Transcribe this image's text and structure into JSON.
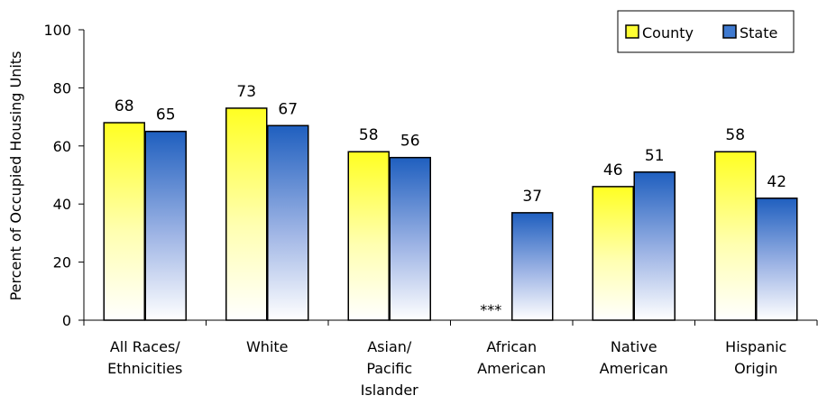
{
  "chart_data": {
    "type": "bar",
    "title": "",
    "xlabel": "",
    "ylabel": "Percent of Occupied Housing Units",
    "ylim": [
      0,
      100
    ],
    "yticks": [
      0,
      20,
      40,
      60,
      80,
      100
    ],
    "grid": false,
    "legend_position": "top-right",
    "categories": [
      [
        "All Races/",
        "Ethnicities"
      ],
      [
        "White"
      ],
      [
        "Asian/",
        "Pacific",
        "Islander"
      ],
      [
        "African",
        "American"
      ],
      [
        "Native",
        "American"
      ],
      [
        "Hispanic",
        "Origin"
      ]
    ],
    "series": [
      {
        "name": "County",
        "values": [
          68,
          73,
          58,
          null,
          46,
          58
        ],
        "missing_label": "***",
        "color": "#ffff33"
      },
      {
        "name": "State",
        "values": [
          65,
          67,
          56,
          37,
          51,
          42
        ],
        "color": "#2f6fc8"
      }
    ]
  }
}
